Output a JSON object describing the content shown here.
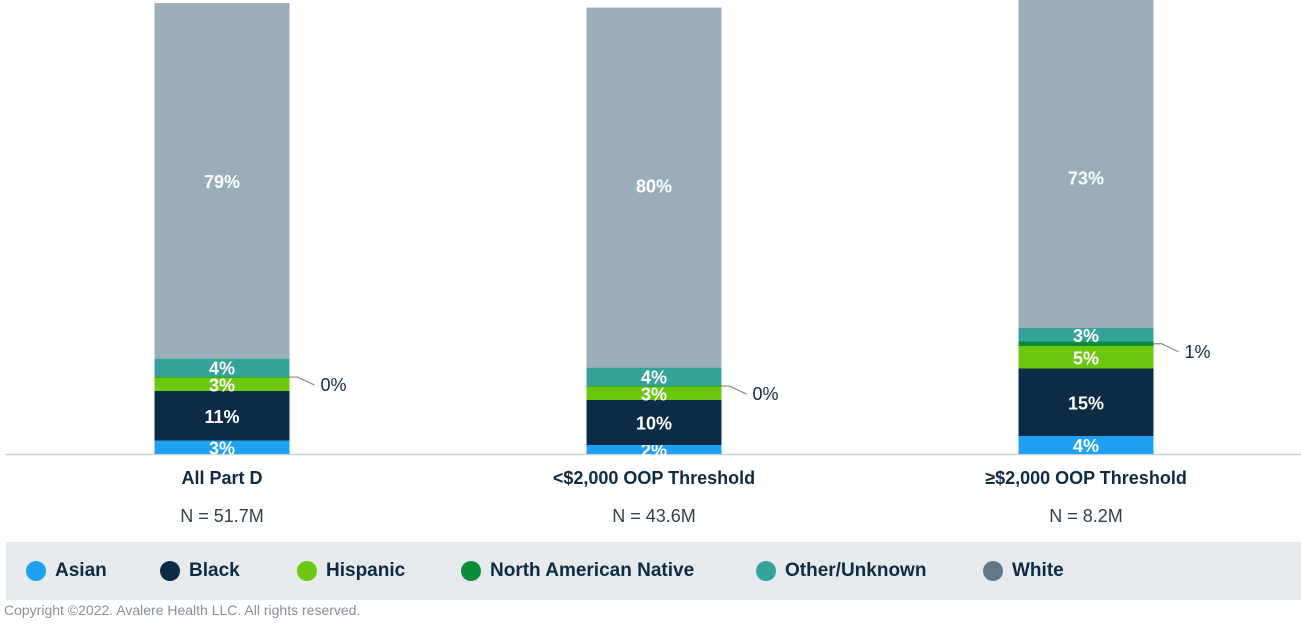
{
  "chart_data": {
    "type": "bar",
    "stacked": true,
    "title": "",
    "xlabel": "",
    "ylabel": "",
    "ylim": [
      0,
      100
    ],
    "categories": [
      "All Part D",
      "<$2,000 OOP Threshold",
      "≥$2,000 OOP Threshold"
    ],
    "category_notes": [
      "N = 51.7M",
      "N = 43.6M",
      "N = 8.2M"
    ],
    "series": [
      {
        "name": "Asian",
        "color": "#1ea1f1",
        "values": [
          3,
          2,
          4
        ],
        "labels": [
          "3%",
          "2%",
          "4%"
        ]
      },
      {
        "name": "Black",
        "color": "#0d2b45",
        "values": [
          11,
          10,
          15
        ],
        "labels": [
          "11%",
          "10%",
          "15%"
        ]
      },
      {
        "name": "Hispanic",
        "color": "#6cc80e",
        "values": [
          3,
          3,
          5
        ],
        "labels": [
          "3%",
          "3%",
          "5%"
        ]
      },
      {
        "name": "North American Native",
        "color": "#0a8c3a",
        "values": [
          0.2,
          0.2,
          1
        ],
        "labels": [
          "0%",
          "0%",
          "1%"
        ]
      },
      {
        "name": "Other/Unknown",
        "color": "#34a39a",
        "values": [
          4,
          4,
          3
        ],
        "labels": [
          "4%",
          "4%",
          "3%"
        ]
      },
      {
        "name": "White",
        "color": "#9aadb8",
        "values": [
          79,
          80,
          73
        ],
        "labels": [
          "79%",
          "80%",
          "73%"
        ]
      }
    ]
  },
  "legend": {
    "items": [
      {
        "label": "Asian",
        "color": "#1ea1f1"
      },
      {
        "label": "Black",
        "color": "#0d2b45"
      },
      {
        "label": "Hispanic",
        "color": "#6cc80e"
      },
      {
        "label": "North American Native",
        "color": "#0a8c3a"
      },
      {
        "label": "Other/Unknown",
        "color": "#34a39a"
      },
      {
        "label": "White",
        "color": "#627887"
      }
    ]
  },
  "footer": {
    "copyright": "Copyright ©2022. Avalere Health LLC. All rights reserved."
  }
}
